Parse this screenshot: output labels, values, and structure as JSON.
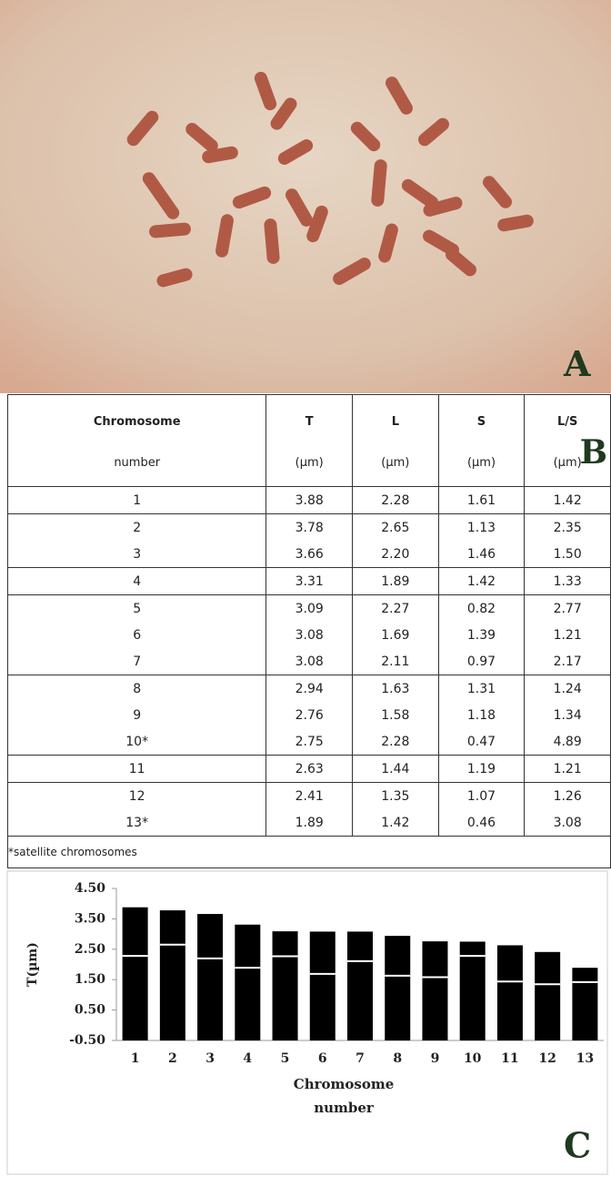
{
  "photo": {
    "label": "A"
  },
  "table": {
    "header": [
      [
        "Chromosome",
        "number"
      ],
      [
        "T",
        "(µm)"
      ],
      [
        "L",
        "(µm)"
      ],
      [
        "S",
        "(µm)"
      ],
      [
        "L/S",
        "(µm)"
      ]
    ],
    "groups": [
      [
        [
          "1",
          "3.88",
          "2.28",
          "1.61",
          "1.42"
        ]
      ],
      [
        [
          "2",
          "3.78",
          "2.65",
          "1.13",
          "2.35"
        ],
        [
          "3",
          "3.66",
          "2.20",
          "1.46",
          "1.50"
        ]
      ],
      [
        [
          "4",
          "3.31",
          "1.89",
          "1.42",
          "1.33"
        ]
      ],
      [
        [
          "5",
          "3.09",
          "2.27",
          "0.82",
          "2.77"
        ],
        [
          "6",
          "3.08",
          "1.69",
          "1.39",
          "1.21"
        ],
        [
          "7",
          "3.08",
          "2.11",
          "0.97",
          "2.17"
        ]
      ],
      [
        [
          "8",
          "2.94",
          "1.63",
          "1.31",
          "1.24"
        ],
        [
          "9",
          "2.76",
          "1.58",
          "1.18",
          "1.34"
        ],
        [
          "10*",
          "2.75",
          "2.28",
          "0.47",
          "4.89"
        ]
      ],
      [
        [
          "11",
          "2.63",
          "1.44",
          "1.19",
          "1.21"
        ]
      ],
      [
        [
          "12",
          "2.41",
          "1.35",
          "1.07",
          "1.26"
        ],
        [
          "13*",
          "1.89",
          "1.42",
          "0.46",
          "3.08"
        ]
      ]
    ],
    "footnote": "*satellite chromosomes",
    "label": "B"
  },
  "chart_data": {
    "type": "bar",
    "label": "C",
    "ylabel": "T(µm)",
    "xlabel": [
      "Chromosome",
      "number"
    ],
    "categories": [
      "1",
      "2",
      "3",
      "4",
      "5",
      "6",
      "7",
      "8",
      "9",
      "10",
      "11",
      "12",
      "13"
    ],
    "series": [
      {
        "color": "#000000",
        "values": [
          3.88,
          3.78,
          3.66,
          3.31,
          3.09,
          3.08,
          3.08,
          2.94,
          2.76,
          2.75,
          2.63,
          2.41,
          1.89
        ]
      },
      {
        "color": "#ffffff",
        "values": [
          2.28,
          2.65,
          2.2,
          1.89,
          2.27,
          1.69,
          2.11,
          1.63,
          1.58,
          2.28,
          1.44,
          1.35,
          1.42
        ]
      }
    ],
    "ylim": [
      -0.5,
      4.5
    ],
    "yticks": [
      {
        "value": -0.5,
        "label": "-0.50"
      },
      {
        "value": 0.5,
        "label": "0.50"
      },
      {
        "value": 1.5,
        "label": "1.50"
      },
      {
        "value": 2.5,
        "label": "2.50"
      },
      {
        "value": 3.5,
        "label": "3.50"
      },
      {
        "value": 4.5,
        "label": "4.50"
      }
    ]
  }
}
